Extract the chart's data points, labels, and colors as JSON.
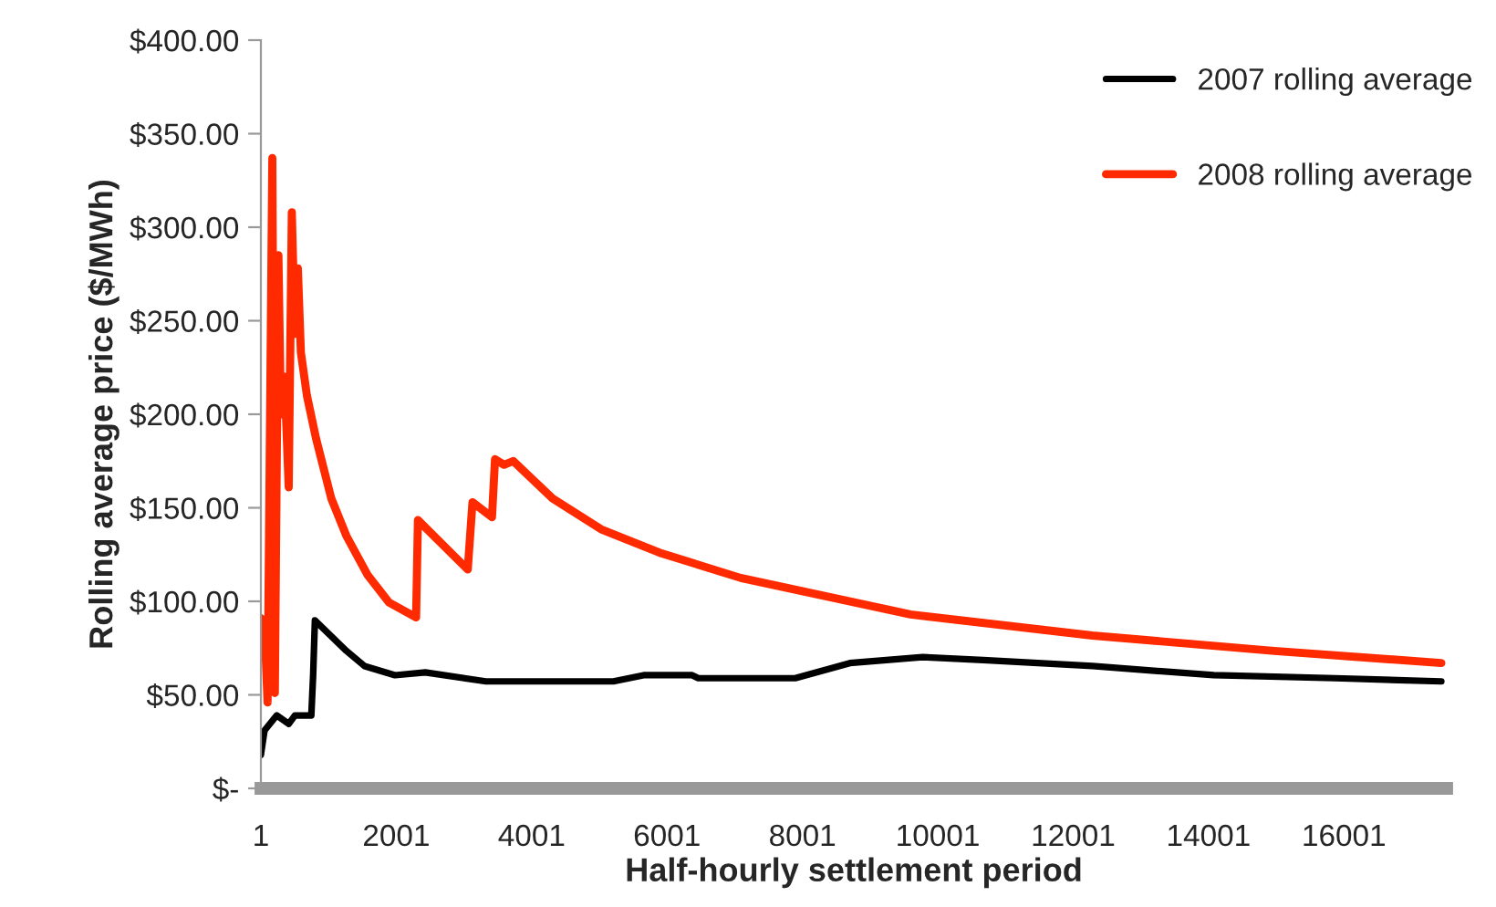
{
  "chart_data": {
    "type": "line",
    "xlabel": "Half-hourly settlement period",
    "ylabel": "Rolling average price ($/MWh)",
    "xlim": [
      1,
      17520
    ],
    "xticks": [
      1,
      2001,
      4001,
      6001,
      8001,
      10001,
      12001,
      14001,
      16001
    ],
    "ylim": [
      0,
      400
    ],
    "yticks": [
      {
        "value": 0,
        "label": "$-"
      },
      {
        "value": 50,
        "label": "$50.00"
      },
      {
        "value": 100,
        "label": "$100.00"
      },
      {
        "value": 150,
        "label": "$150.00"
      },
      {
        "value": 200,
        "label": "$200.00"
      },
      {
        "value": 250,
        "label": "$250.00"
      },
      {
        "value": 300,
        "label": "$300.00"
      },
      {
        "value": 350,
        "label": "$350.00"
      },
      {
        "value": 400,
        "label": "$400.00"
      }
    ],
    "grid": false,
    "legend": "top right",
    "marker": "none",
    "line_style": "solid",
    "series": [
      {
        "name": "2007 rolling average",
        "color": "#000000",
        "x": [
          1,
          55,
          235,
          412,
          503,
          746,
          773,
          799,
          1264,
          1533,
          1982,
          2429,
          3326,
          5208,
          5656,
          6372,
          6462,
          7895,
          8702,
          9777,
          10673,
          12286,
          14078,
          15870,
          17440
        ],
        "values": [
          18,
          31,
          39,
          34.5,
          39,
          39,
          60.5,
          89.8,
          73.5,
          65.4,
          60.5,
          62,
          57.2,
          57.2,
          60.5,
          60.5,
          58.9,
          58.9,
          67,
          70.2,
          68.6,
          65.4,
          60.5,
          58.9,
          57.2
        ]
      },
      {
        "name": "2008 rolling average",
        "color": "#ff2a00",
        "x": [
          1,
          55,
          100,
          170,
          207,
          260,
          296,
          350,
          412,
          458,
          503,
          547,
          592,
          681,
          816,
          1041,
          1264,
          1579,
          1891,
          2294,
          2321,
          3057,
          3127,
          3415,
          3460,
          3594,
          3729,
          4310,
          5028,
          5924,
          7090,
          9598,
          12286,
          14974,
          17440
        ],
        "values": [
          91,
          86.5,
          46,
          337,
          51,
          285,
          200,
          220,
          161,
          308,
          243,
          278,
          233,
          210,
          187,
          155,
          135,
          114,
          99.5,
          91.4,
          143.4,
          117,
          153,
          145,
          176,
          173,
          175,
          155,
          138.5,
          125.6,
          112.5,
          93,
          81.7,
          73.5,
          67
        ]
      }
    ]
  }
}
